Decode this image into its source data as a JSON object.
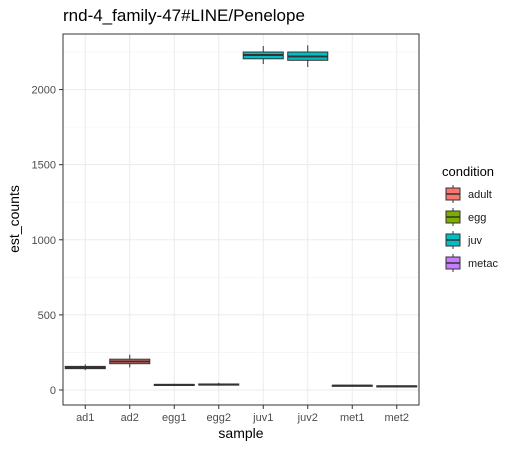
{
  "chart_data": {
    "type": "boxplot",
    "title": "rnd-4_family-47#LINE/Penelope",
    "xlabel": "sample",
    "ylabel": "est_counts",
    "ylim": [
      -100,
      2370
    ],
    "y_ticks": [
      0,
      500,
      1000,
      1500,
      2000
    ],
    "grid": true,
    "legend_position": "right",
    "legend_title": "condition",
    "legend": [
      {
        "label": "adult",
        "color": "#F8766D"
      },
      {
        "label": "egg",
        "color": "#7CAE00"
      },
      {
        "label": "juv",
        "color": "#00BFC4"
      },
      {
        "label": "metac",
        "color": "#C77CFF"
      }
    ],
    "categories": [
      "ad1",
      "ad2",
      "egg1",
      "egg2",
      "juv1",
      "juv2",
      "met1",
      "met2"
    ],
    "boxes": [
      {
        "sample": "ad1",
        "condition": "adult",
        "min": 132,
        "q1": 142,
        "median": 149,
        "q3": 157,
        "max": 170
      },
      {
        "sample": "ad2",
        "condition": "adult",
        "min": 150,
        "q1": 175,
        "median": 190,
        "q3": 205,
        "max": 235
      },
      {
        "sample": "egg1",
        "condition": "egg",
        "min": 28,
        "q1": 31,
        "median": 34,
        "q3": 37,
        "max": 41
      },
      {
        "sample": "egg2",
        "condition": "egg",
        "min": 28,
        "q1": 33,
        "median": 36,
        "q3": 40,
        "max": 48
      },
      {
        "sample": "juv1",
        "condition": "juv",
        "min": 2170,
        "q1": 2205,
        "median": 2230,
        "q3": 2250,
        "max": 2290
      },
      {
        "sample": "juv2",
        "condition": "juv",
        "min": 2150,
        "q1": 2195,
        "median": 2220,
        "q3": 2250,
        "max": 2295
      },
      {
        "sample": "met1",
        "condition": "metac",
        "min": 24,
        "q1": 27,
        "median": 29,
        "q3": 31,
        "max": 34
      },
      {
        "sample": "met2",
        "condition": "metac",
        "min": 20,
        "q1": 23,
        "median": 25,
        "q3": 27,
        "max": 30
      }
    ]
  }
}
